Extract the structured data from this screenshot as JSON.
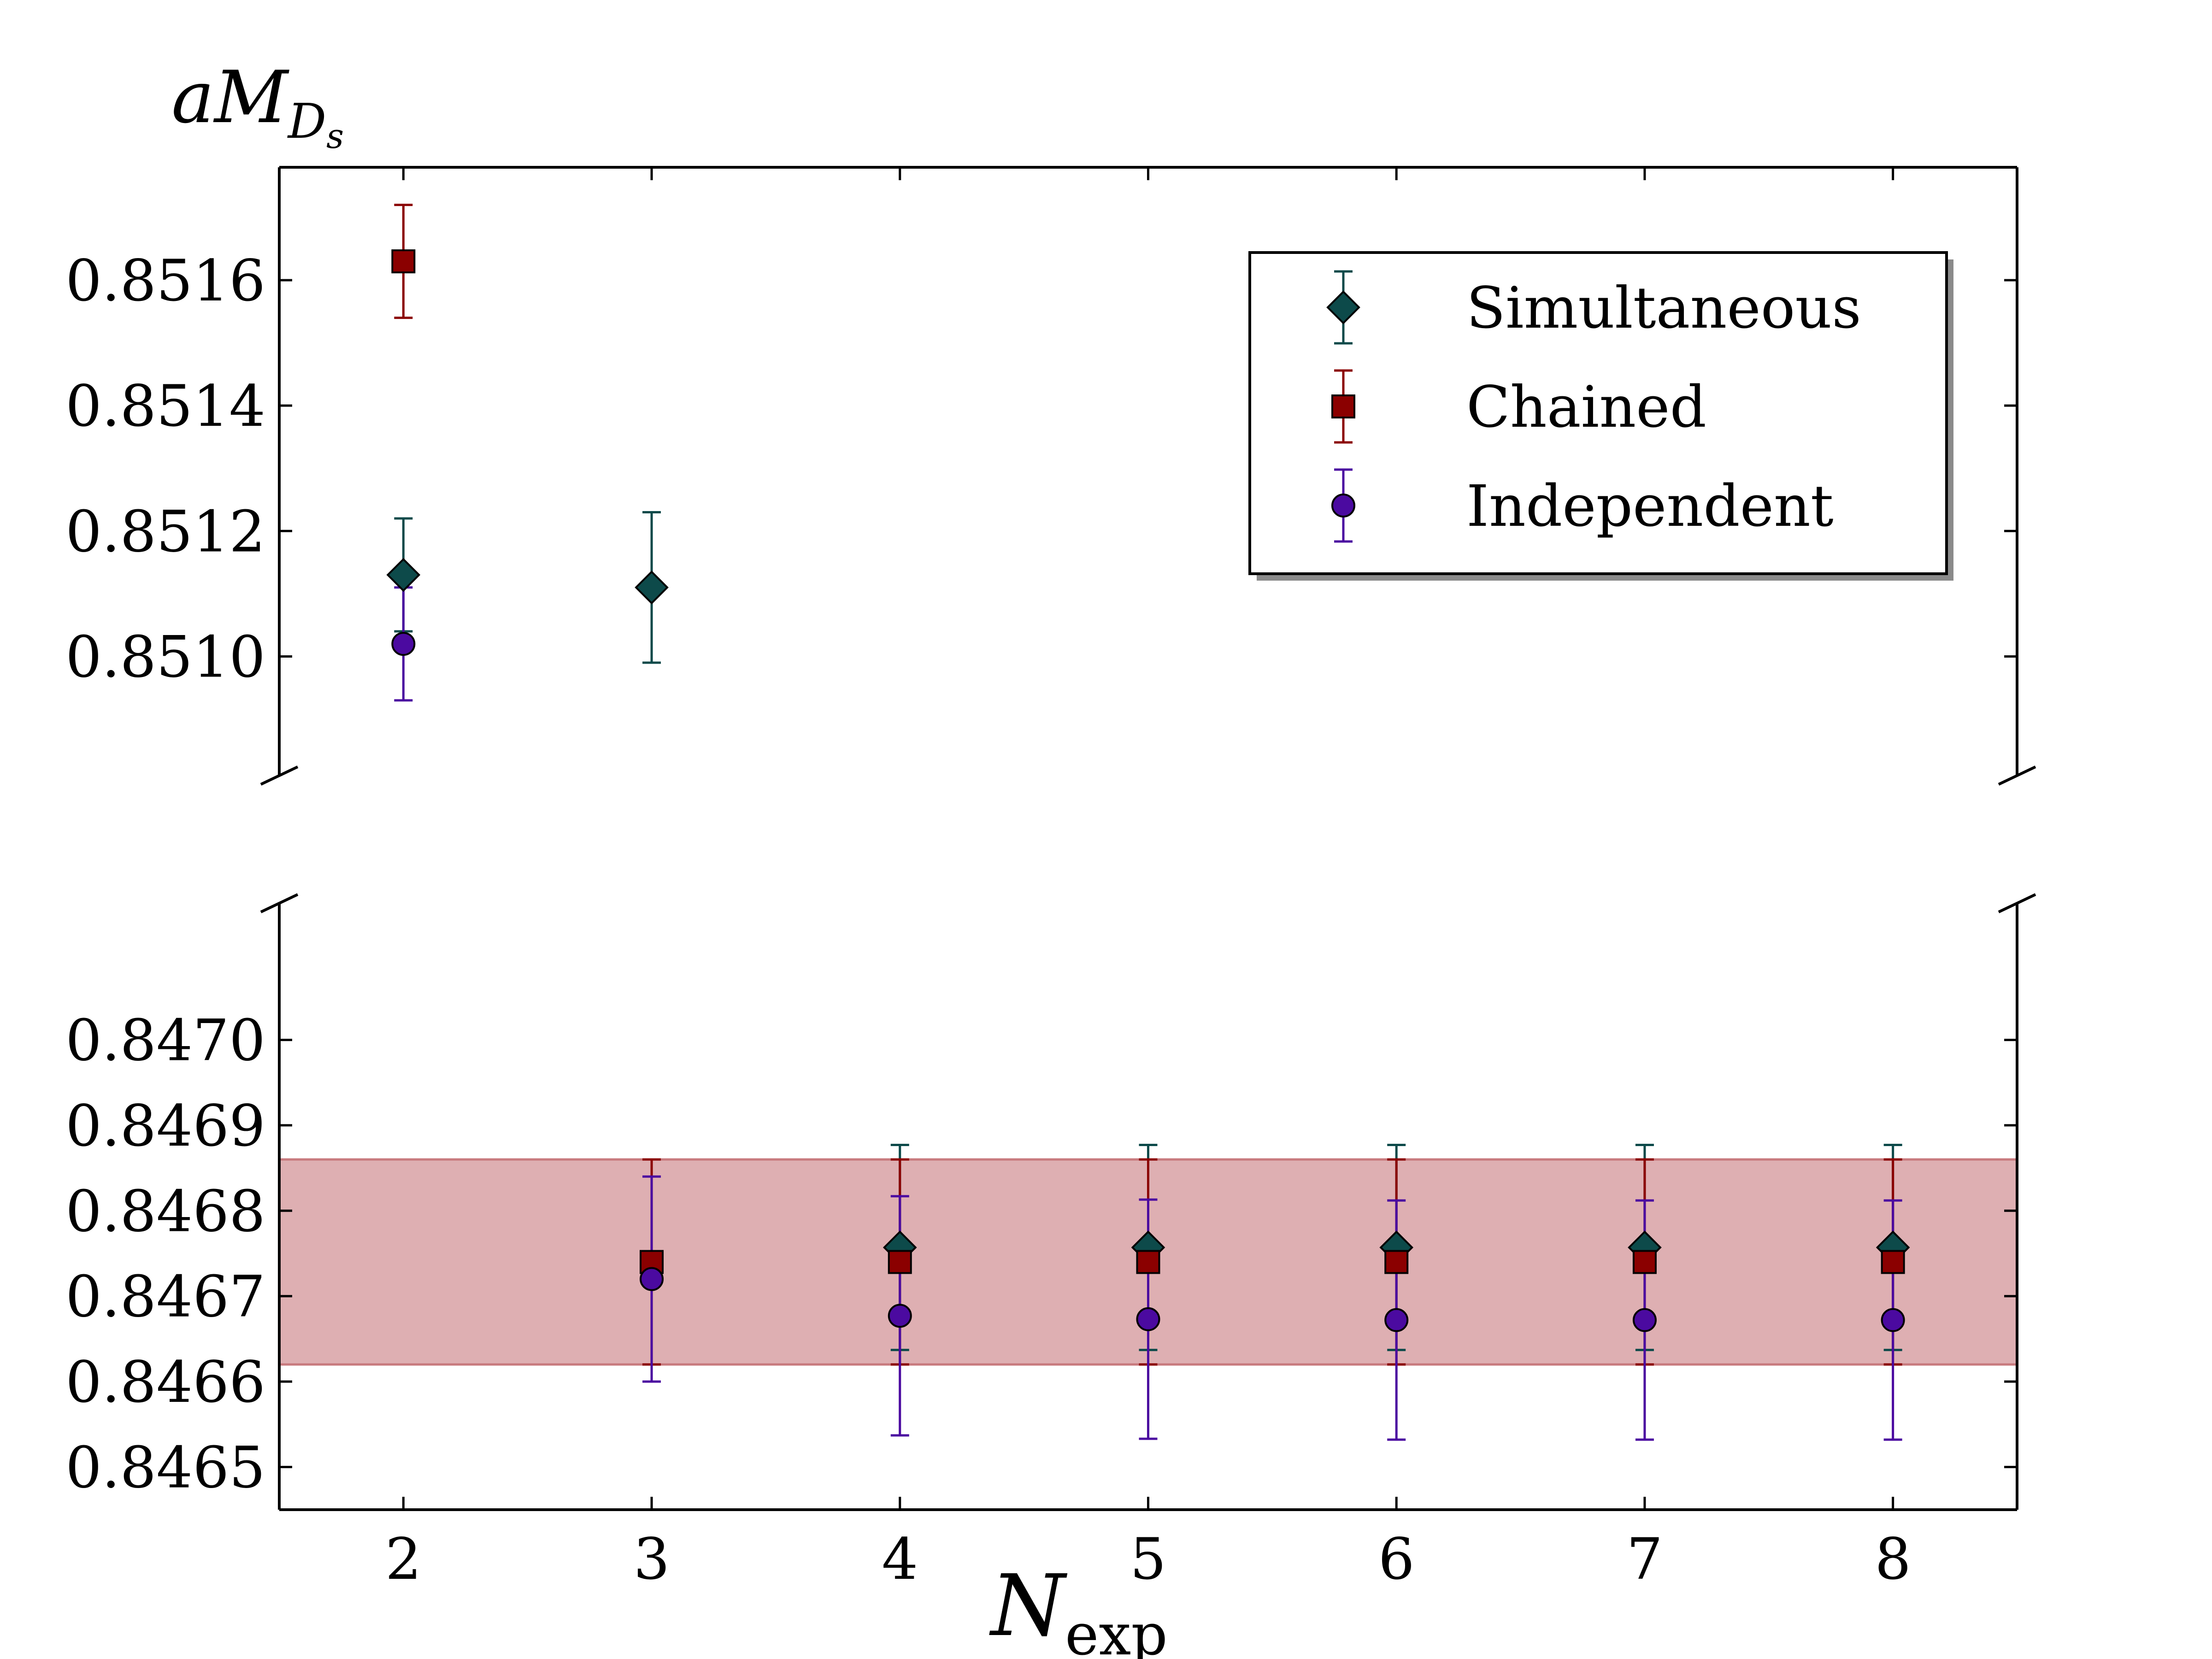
{
  "chart_data": {
    "type": "scatter",
    "title": "",
    "ylabel": {
      "main": "aM",
      "subscript": "D",
      "subsubscript": "s"
    },
    "xlabel": {
      "main": "N",
      "subscript": "exp"
    },
    "x_ticks": [
      "2",
      "3",
      "4",
      "5",
      "6",
      "7",
      "8"
    ],
    "xlim": [
      1.5,
      8.5
    ],
    "panels": {
      "top": {
        "ylim": [
          0.85081,
          0.85178
        ],
        "ticks": [
          "0.8510",
          "0.8512",
          "0.8514",
          "0.8516"
        ],
        "tick_values": [
          0.851,
          0.8512,
          0.8514,
          0.8516
        ]
      },
      "bottom": {
        "ylim": [
          0.84645,
          0.84716
        ],
        "ticks": [
          "0.8465",
          "0.8466",
          "0.8467",
          "0.8468",
          "0.8469",
          "0.8470"
        ],
        "tick_values": [
          0.8465,
          0.8466,
          0.8467,
          0.8468,
          0.8469,
          0.847
        ]
      }
    },
    "band": {
      "low": 0.84662,
      "high": 0.84686,
      "color": "#c87a7e"
    },
    "series": [
      {
        "name": "Simultaneous",
        "marker": "diamond",
        "color": "#0d4a4a",
        "points": [
          {
            "x": 2,
            "y": 0.85113,
            "err": 9e-05
          },
          {
            "x": 3,
            "y": 0.85111,
            "err": 0.00012
          },
          {
            "x": 4,
            "y": 0.846757,
            "err": 0.00012
          },
          {
            "x": 5,
            "y": 0.846757,
            "err": 0.00012
          },
          {
            "x": 6,
            "y": 0.846757,
            "err": 0.00012
          },
          {
            "x": 7,
            "y": 0.846757,
            "err": 0.00012
          },
          {
            "x": 8,
            "y": 0.846757,
            "err": 0.00012
          }
        ]
      },
      {
        "name": "Chained",
        "marker": "square",
        "color": "#8b0000",
        "points": [
          {
            "x": 2,
            "y": 0.85163,
            "err": 9e-05
          },
          {
            "x": 3,
            "y": 0.84674,
            "err": 0.00012
          },
          {
            "x": 4,
            "y": 0.84674,
            "err": 0.00012
          },
          {
            "x": 5,
            "y": 0.84674,
            "err": 0.00012
          },
          {
            "x": 6,
            "y": 0.84674,
            "err": 0.00012
          },
          {
            "x": 7,
            "y": 0.84674,
            "err": 0.00012
          },
          {
            "x": 8,
            "y": 0.84674,
            "err": 0.00012
          }
        ]
      },
      {
        "name": "Independent",
        "marker": "circle",
        "color": "#4b0aa0",
        "points": [
          {
            "x": 2,
            "y": 0.85102,
            "err": 9e-05
          },
          {
            "x": 3,
            "y": 0.84672,
            "err": 0.00012
          },
          {
            "x": 4,
            "y": 0.846677,
            "err": 0.00014
          },
          {
            "x": 5,
            "y": 0.846673,
            "err": 0.00014
          },
          {
            "x": 6,
            "y": 0.846672,
            "err": 0.00014
          },
          {
            "x": 7,
            "y": 0.846672,
            "err": 0.00014
          },
          {
            "x": 8,
            "y": 0.846672,
            "err": 0.00014
          }
        ]
      }
    ],
    "legend": {
      "location": "top-right",
      "entries": [
        "Simultaneous",
        "Chained",
        "Independent"
      ]
    }
  }
}
